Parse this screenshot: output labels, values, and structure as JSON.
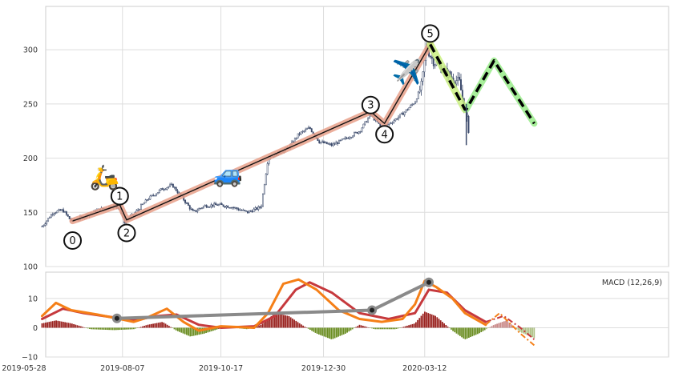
{
  "chart_data": [
    {
      "panel": "price",
      "type": "line",
      "subtype": "candlestick-with-elliott-wave-annotations",
      "title": "",
      "xlabel": "",
      "ylabel": "",
      "ylim": [
        100,
        340
      ],
      "yticks": [
        100,
        150,
        200,
        250,
        300
      ],
      "grid": true,
      "x_axis": "dates",
      "date_domain": [
        "2019-05-28",
        "2020-05-13"
      ],
      "price_path": [
        [
          "2019-06-10",
          137
        ],
        [
          "2019-06-18",
          150
        ],
        [
          "2019-06-25",
          152
        ],
        [
          "2019-07-01",
          142
        ],
        [
          "2019-07-10",
          146
        ],
        [
          "2019-07-20",
          152
        ],
        [
          "2019-07-31",
          156
        ],
        [
          "2019-08-05",
          154
        ],
        [
          "2019-08-08",
          141
        ],
        [
          "2019-08-15",
          148
        ],
        [
          "2019-08-25",
          162
        ],
        [
          "2019-09-05",
          172
        ],
        [
          "2019-09-12",
          175
        ],
        [
          "2019-09-20",
          162
        ],
        [
          "2019-09-27",
          150
        ],
        [
          "2019-10-05",
          156
        ],
        [
          "2019-10-15",
          157
        ],
        [
          "2019-10-25",
          155
        ],
        [
          "2019-11-05",
          150
        ],
        [
          "2019-11-15",
          155
        ],
        [
          "2019-11-20",
          200
        ],
        [
          "2019-11-28",
          205
        ],
        [
          "2019-12-05",
          210
        ],
        [
          "2019-12-12",
          222
        ],
        [
          "2019-12-20",
          228
        ],
        [
          "2019-12-27",
          215
        ],
        [
          "2020-01-05",
          212
        ],
        [
          "2020-01-15",
          218
        ],
        [
          "2020-01-25",
          225
        ],
        [
          "2020-02-02",
          240
        ],
        [
          "2020-02-10",
          228
        ],
        [
          "2020-02-18",
          234
        ],
        [
          "2020-02-26",
          242
        ],
        [
          "2020-03-05",
          252
        ],
        [
          "2020-03-10",
          268
        ],
        [
          "2020-03-13",
          303
        ],
        [
          "2020-03-18",
          290
        ],
        [
          "2020-03-25",
          282
        ],
        [
          "2020-03-31",
          275
        ],
        [
          "2020-04-06",
          270
        ],
        [
          "2020-04-13",
          225
        ]
      ],
      "wave_points": [
        {
          "label": "0",
          "date": "2019-07-02",
          "value": 142
        },
        {
          "label": "1",
          "date": "2019-08-05",
          "value": 157
        },
        {
          "label": "2",
          "date": "2019-08-10",
          "value": 143
        },
        {
          "label": "3",
          "date": "2020-02-02",
          "value": 243
        },
        {
          "label": "4",
          "date": "2020-02-12",
          "value": 232
        },
        {
          "label": "5",
          "date": "2020-03-16",
          "value": 305
        }
      ],
      "label_offsets_value": [
        -18,
        8,
        -12,
        6,
        -10,
        10
      ],
      "projection": [
        {
          "date": "2020-03-16",
          "value": 305
        },
        {
          "date": "2020-04-10",
          "value": 245
        },
        {
          "date": "2020-04-11",
          "value": 245
        },
        {
          "date": "2020-05-01",
          "value": 290
        },
        {
          "date": "2020-05-30",
          "value": 232
        }
      ],
      "vertical_marker_date": "2020-04-11",
      "emoji_markers": [
        {
          "emoji": "🛵",
          "date": "2019-07-25",
          "value": 175
        },
        {
          "emoji": "🚙",
          "date": "2019-10-22",
          "value": 178
        },
        {
          "emoji": "✈️",
          "date": "2020-02-28",
          "value": 272
        }
      ],
      "colors": {
        "candles": "#3b4a6b",
        "wave_line": "#111111",
        "wave_glow": "#e8a08a",
        "projection": "#000000",
        "projection_glow": "#a7ee9a",
        "last_leg_glow": "#c8f07a"
      }
    },
    {
      "panel": "macd",
      "type": "line",
      "subtype": "macd",
      "title": "",
      "legend_text": "MACD (12,26,9)",
      "ylim": [
        -10,
        19
      ],
      "yticks": [
        -10,
        0,
        10
      ],
      "grid": true,
      "x_tick_labels": [
        "2019-05-28",
        "2019-08-07",
        "2019-10-17",
        "2019-12-30",
        "2020-03-12"
      ],
      "macd_line": [
        [
          "2019-06-10",
          4
        ],
        [
          "2019-06-20",
          8.5
        ],
        [
          "2019-07-01",
          6
        ],
        [
          "2019-07-20",
          4.5
        ],
        [
          "2019-08-05",
          3
        ],
        [
          "2019-08-15",
          2
        ],
        [
          "2019-08-25",
          3.5
        ],
        [
          "2019-09-08",
          6.5
        ],
        [
          "2019-09-20",
          2
        ],
        [
          "2019-10-01",
          -1
        ],
        [
          "2019-10-17",
          0.5
        ],
        [
          "2019-11-10",
          0
        ],
        [
          "2019-11-20",
          5
        ],
        [
          "2019-12-01",
          15
        ],
        [
          "2019-12-12",
          16.5
        ],
        [
          "2019-12-25",
          13
        ],
        [
          "2020-01-10",
          6
        ],
        [
          "2020-01-25",
          3
        ],
        [
          "2020-02-10",
          2
        ],
        [
          "2020-02-25",
          3
        ],
        [
          "2020-03-05",
          8
        ],
        [
          "2020-03-12",
          16
        ],
        [
          "2020-03-20",
          14
        ],
        [
          "2020-04-01",
          10
        ],
        [
          "2020-04-10",
          5
        ],
        [
          "2020-04-25",
          1
        ],
        [
          "2020-05-05",
          5
        ],
        [
          "2020-05-20",
          -2
        ],
        [
          "2020-05-30",
          -6
        ]
      ],
      "signal_line": [
        [
          "2019-06-10",
          3
        ],
        [
          "2019-06-25",
          6.5
        ],
        [
          "2019-07-10",
          5
        ],
        [
          "2019-08-01",
          3.5
        ],
        [
          "2019-08-15",
          2.5
        ],
        [
          "2019-09-01",
          4
        ],
        [
          "2019-09-15",
          4.5
        ],
        [
          "2019-10-01",
          1
        ],
        [
          "2019-10-17",
          0
        ],
        [
          "2019-11-10",
          0.5
        ],
        [
          "2019-11-25",
          4
        ],
        [
          "2019-12-10",
          13
        ],
        [
          "2019-12-20",
          15.5
        ],
        [
          "2020-01-05",
          12
        ],
        [
          "2020-01-25",
          5
        ],
        [
          "2020-02-15",
          3
        ],
        [
          "2020-03-05",
          5
        ],
        [
          "2020-03-15",
          13
        ],
        [
          "2020-03-28",
          12
        ],
        [
          "2020-04-10",
          6
        ],
        [
          "2020-04-25",
          2
        ],
        [
          "2020-05-08",
          4
        ],
        [
          "2020-05-20",
          0
        ],
        [
          "2020-05-30",
          -4
        ]
      ],
      "histogram": [
        [
          "2019-06-10",
          1.5
        ],
        [
          "2019-06-20",
          2.5
        ],
        [
          "2019-07-01",
          1.5
        ],
        [
          "2019-07-15",
          -0.5
        ],
        [
          "2019-08-01",
          -0.8
        ],
        [
          "2019-08-15",
          -0.5
        ],
        [
          "2019-08-25",
          1
        ],
        [
          "2019-09-05",
          2
        ],
        [
          "2019-09-15",
          -1
        ],
        [
          "2019-09-25",
          -3
        ],
        [
          "2019-10-05",
          -2
        ],
        [
          "2019-10-20",
          0.3
        ],
        [
          "2019-11-05",
          -0.5
        ],
        [
          "2019-11-15",
          1
        ],
        [
          "2019-11-25",
          5
        ],
        [
          "2019-12-05",
          4
        ],
        [
          "2019-12-15",
          0.8
        ],
        [
          "2019-12-25",
          -2
        ],
        [
          "2020-01-05",
          -4
        ],
        [
          "2020-01-15",
          -2
        ],
        [
          "2020-01-25",
          1
        ],
        [
          "2020-02-05",
          -0.5
        ],
        [
          "2020-02-20",
          -0.5
        ],
        [
          "2020-03-05",
          1.5
        ],
        [
          "2020-03-12",
          5.5
        ],
        [
          "2020-03-20",
          4
        ],
        [
          "2020-04-01",
          -1
        ],
        [
          "2020-04-10",
          -4
        ],
        [
          "2020-04-20",
          -2
        ],
        [
          "2020-05-01",
          1
        ],
        [
          "2020-05-10",
          2.5
        ],
        [
          "2020-05-20",
          -1.5
        ],
        [
          "2020-05-30",
          -3.5
        ]
      ],
      "trend_points": [
        {
          "date": "2019-08-03",
          "value": 3.2
        },
        {
          "date": "2020-02-03",
          "value": 6
        },
        {
          "date": "2020-03-15",
          "value": 15.5
        }
      ],
      "projection_start_date": "2020-04-25",
      "colors": {
        "macd": "#f57f17",
        "signal": "#c6393d",
        "hist_pos": "#9a2320",
        "hist_neg": "#6b8e23",
        "trend": "#8a8a8a"
      }
    }
  ]
}
